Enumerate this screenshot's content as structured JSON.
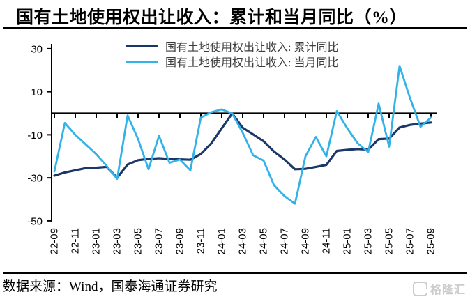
{
  "title": "国有土地使用权出让收入：累计和当月同比（%）",
  "legend": {
    "items": [
      {
        "label": "国有土地使用权出让收入: 累计同比",
        "color": "#1b3768"
      },
      {
        "label": "国有土地使用权出让收入: 当月同比",
        "color": "#31b2e8"
      }
    ]
  },
  "footer": {
    "source_label": "数据来源：Wind，国泰海通证券研究",
    "logo_text": "格隆汇"
  },
  "chart_data": {
    "type": "line",
    "title": "国有土地使用权出让收入：累计和当月同比（%）",
    "xlabel": "",
    "ylabel": "",
    "ylim": [
      -50,
      30
    ],
    "yticks": [
      30,
      10,
      -10,
      -30,
      -50
    ],
    "grid": false,
    "legend_position": "top-center",
    "x_tick_every": 2,
    "x": [
      "22-09",
      "22-10",
      "22-11",
      "22-12",
      "23-01",
      "23-02",
      "23-03",
      "23-04",
      "23-05",
      "23-06",
      "23-07",
      "23-08",
      "23-09",
      "23-10",
      "23-11",
      "23-12",
      "24-01",
      "24-02",
      "24-03",
      "24-04",
      "24-05",
      "24-06",
      "24-07",
      "24-08",
      "24-09",
      "24-10",
      "24-11",
      "24-12",
      "25-01",
      "25-02",
      "25-03",
      "25-04",
      "25-05",
      "25-06",
      "25-07",
      "25-08",
      "25-09"
    ],
    "series": [
      {
        "name": "国有土地使用权出让收入: 累计同比",
        "color": "#1b3768",
        "width": 3.2,
        "values": [
          -29,
          -27.5,
          -26.5,
          -25.5,
          -25.3,
          -24.9,
          -30,
          -23.8,
          -21.8,
          -21.2,
          -20.9,
          -21.2,
          -21.4,
          -21.6,
          -18.9,
          -14,
          -7,
          -0.1,
          -6.7,
          -9.8,
          -13,
          -17.8,
          -21.5,
          -26,
          -25.8,
          -24.9,
          -24,
          -17.5,
          -17,
          -16.6,
          -16.9,
          -12,
          -11.8,
          -6.6,
          -5.4,
          -4.8,
          -4.3
        ]
      },
      {
        "name": "国有土地使用权出让收入: 当月同比",
        "color": "#31b2e8",
        "width": 2.8,
        "values": [
          -27,
          -4.5,
          -10,
          -14.5,
          -19,
          -24.5,
          -30.5,
          -1,
          -12,
          -26,
          -10.5,
          -23,
          -21.5,
          -26.5,
          -2,
          0.5,
          1.8,
          -0.1,
          -9,
          -19.5,
          -22,
          -33.5,
          -38.5,
          -42,
          -20,
          -11,
          -20,
          1,
          -7,
          -14,
          -18,
          4.5,
          -15.5,
          22,
          7,
          -6.3,
          -2
        ]
      }
    ]
  }
}
